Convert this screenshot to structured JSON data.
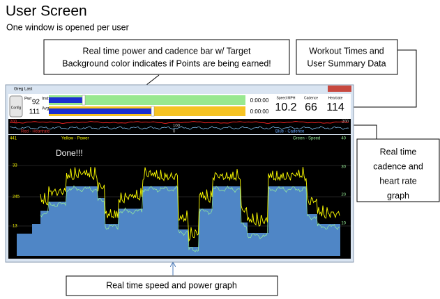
{
  "header": {
    "title": "User Screen",
    "subtitle": "One window is opened per user"
  },
  "callouts": {
    "power_bar": [
      "Real time power and cadence bar w/ Target",
      "Background color indicates if Points are being earned!"
    ],
    "summary": [
      "Workout Times and",
      "User Summary Data"
    ],
    "hr_graph": [
      "Real time",
      "cadence and",
      "heart rate",
      "graph"
    ],
    "speed_graph": [
      "Real time speed and power graph"
    ]
  },
  "window": {
    "title": "Greg Last",
    "config": "Config",
    "pwr": "Pwr",
    "inst": "Inst",
    "avg": "Avg",
    "inst_value": "92",
    "avg_value": "111",
    "time1": "0:00:00",
    "time2": "0:00:00",
    "speed_label": "Speed MPH",
    "speed": "10.2",
    "cadence_label": "Cadence",
    "cadence": "66",
    "heartrate_label": "Heartrate",
    "heartrate": "114",
    "small_graph": {
      "top": "200",
      "mid": "100",
      "bottom": "0",
      "right_top": "200",
      "red_label": "Red - Heartrate",
      "blue_label": "Blue - Cadence"
    },
    "main_graph": {
      "left_top": "441",
      "left_2": "33",
      "left_3": "245",
      "left_4": "13",
      "right_top": "40",
      "right_2": "30",
      "right_3": "20",
      "right_4": "10",
      "yellow_label": "Yellow - Power",
      "green_label": "Green - Speed",
      "status": "Done!!!"
    }
  }
}
